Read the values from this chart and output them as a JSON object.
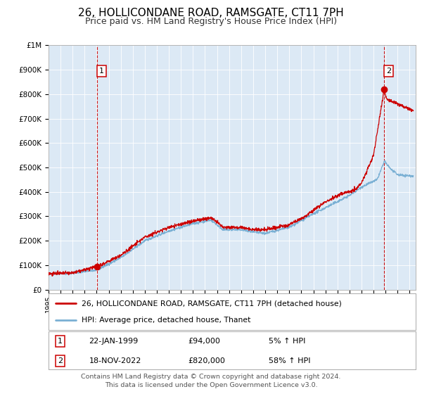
{
  "title": "26, HOLLICONDANE ROAD, RAMSGATE, CT11 7PH",
  "subtitle": "Price paid vs. HM Land Registry's House Price Index (HPI)",
  "title_fontsize": 11,
  "subtitle_fontsize": 9,
  "background_color": "#ffffff",
  "plot_bg_color": "#dce9f5",
  "grid_color": "#ffffff",
  "red_line_color": "#cc0000",
  "blue_line_color": "#7ab0d4",
  "ylim": [
    0,
    1000000
  ],
  "yticks": [
    0,
    100000,
    200000,
    300000,
    400000,
    500000,
    600000,
    700000,
    800000,
    900000,
    1000000
  ],
  "ytick_labels": [
    "£0",
    "£100K",
    "£200K",
    "£300K",
    "£400K",
    "£500K",
    "£600K",
    "£700K",
    "£800K",
    "£900K",
    "£1M"
  ],
  "xmin": 1995.0,
  "xmax": 2025.5,
  "sale1_x": 1999.055,
  "sale1_y": 94000,
  "sale1_label": "1",
  "sale2_x": 2022.88,
  "sale2_y": 820000,
  "sale2_label": "2",
  "legend_line1": "26, HOLLICONDANE ROAD, RAMSGATE, CT11 7PH (detached house)",
  "legend_line2": "HPI: Average price, detached house, Thanet",
  "annot1_date": "22-JAN-1999",
  "annot1_price": "£94,000",
  "annot1_hpi": "5% ↑ HPI",
  "annot2_date": "18-NOV-2022",
  "annot2_price": "£820,000",
  "annot2_hpi": "58% ↑ HPI",
  "footer": "Contains HM Land Registry data © Crown copyright and database right 2024.\nThis data is licensed under the Open Government Licence v3.0."
}
